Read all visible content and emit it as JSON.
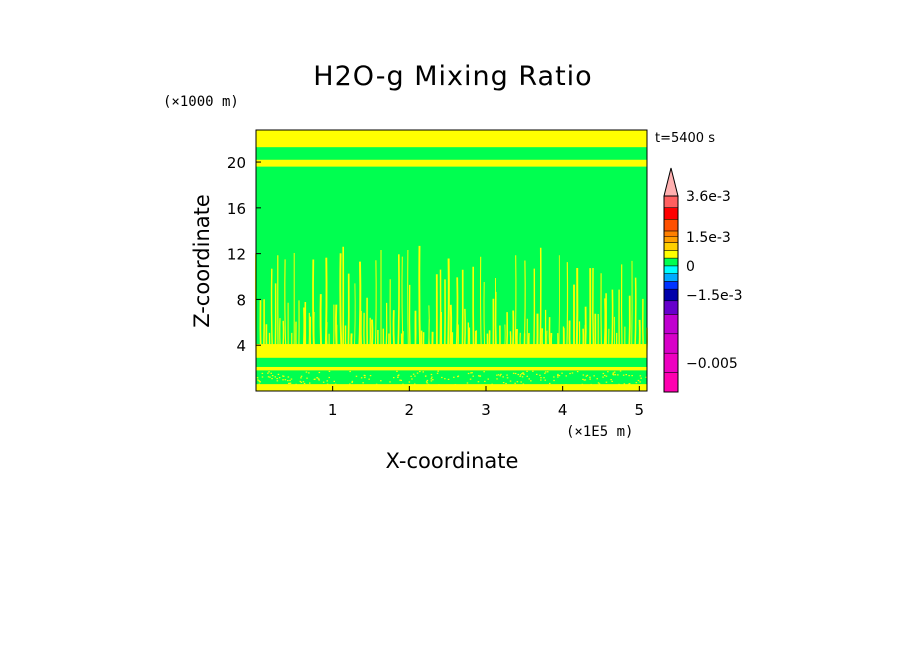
{
  "chart_data": {
    "type": "heatmap",
    "title": "H2O-g Mixing Ratio",
    "xlabel": "X-coordinate",
    "ylabel": "Z-coordinate",
    "x_unit_label": "(×1E5 m)",
    "y_unit_label": "(×1000 m)",
    "time_label": "t=5400 s",
    "xlim": [
      0,
      5.1
    ],
    "ylim": [
      0,
      22.8
    ],
    "x_ticks": [
      1,
      2,
      3,
      4,
      5
    ],
    "y_ticks": [
      4,
      8,
      12,
      16,
      20
    ],
    "x_tick_labels": [
      "1",
      "2",
      "3",
      "4",
      "5"
    ],
    "y_tick_labels": [
      "4",
      "8",
      "12",
      "16",
      "20"
    ],
    "colors": {
      "background_field": "#00ff50",
      "positive_band": "#ffff00",
      "near_zero": "#00ff50"
    },
    "layers": [
      {
        "z_from": 21.3,
        "z_to": 22.8,
        "level": 0
      },
      {
        "z_from": 19.6,
        "z_to": 20.2,
        "level": 0
      },
      {
        "z_from": 2.9,
        "z_to": 4.1,
        "level": 0
      },
      {
        "z_from": 1.8,
        "z_to": 2.1,
        "level": 0
      },
      {
        "z_from": 0.0,
        "z_to": 0.6,
        "level": 0
      }
    ],
    "plumes": {
      "z_base": 3.0,
      "z_top_range": [
        5,
        13
      ],
      "color_level": 0
    },
    "colorbar": {
      "levels": [
        -0.0065,
        -0.0055,
        -0.0045,
        -0.0035,
        -0.0025,
        -0.0018,
        -0.0012,
        -0.0008,
        -0.0004,
        0,
        0.0004,
        0.0008,
        0.0012,
        0.0015,
        0.0018,
        0.0024,
        0.003,
        0.0036,
        0.0045
      ],
      "colors": [
        "#ff00b0",
        "#ee00c0",
        "#d800c8",
        "#c000d0",
        "#6600cc",
        "#0000aa",
        "#0033ff",
        "#00aaff",
        "#00ffff",
        "#00ff50",
        "#ffff00",
        "#ffd000",
        "#ffa000",
        "#ff7f00",
        "#ff5000",
        "#ff0000",
        "#ff6060",
        "#ffb0b0"
      ],
      "tick_values": [
        0.0036,
        0.0015,
        0,
        -0.0015,
        -0.005
      ],
      "tick_labels": [
        "3.6e-3",
        "1.5e-3",
        "0",
        "−1.5e-3",
        "−0.005"
      ],
      "extend": "max"
    }
  }
}
